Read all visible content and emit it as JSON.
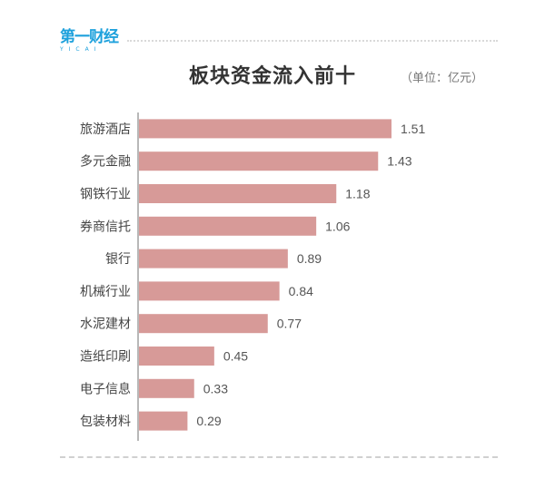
{
  "logo": {
    "text": "第一财经",
    "sub": "YICAI"
  },
  "unit_label": "（单位：亿元）",
  "chart_data": {
    "type": "bar",
    "orientation": "horizontal",
    "title": "板块资金流入前十",
    "categories": [
      "旅游酒店",
      "多元金融",
      "钢铁行业",
      "券商信托",
      "银行",
      "机械行业",
      "水泥建材",
      "造纸印刷",
      "电子信息",
      "包装材料"
    ],
    "values": [
      1.51,
      1.43,
      1.18,
      1.06,
      0.89,
      0.84,
      0.77,
      0.45,
      0.33,
      0.29
    ],
    "value_labels": [
      "1.51",
      "1.43",
      "1.18",
      "1.06",
      "0.89",
      "0.84",
      "0.77",
      "0.45",
      "0.33",
      "0.29"
    ],
    "xlim": [
      0,
      1.8
    ],
    "grid": false,
    "colors": {
      "bar": "#d79a98",
      "axis": "#888888",
      "label": "#444444",
      "value": "#555555"
    }
  }
}
